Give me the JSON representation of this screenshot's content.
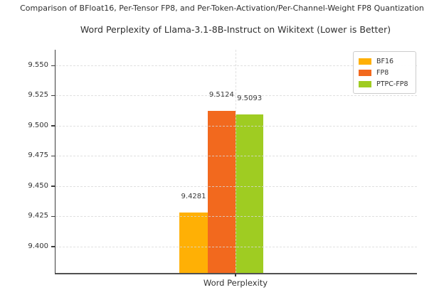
{
  "figure": {
    "suptitle": "Comparison of BFloat16, Per-Tensor FP8, and Per-Token-Activation/Per-Channel-Weight FP8 Quantization"
  },
  "chart_data": {
    "type": "bar",
    "title": "Word Perplexity of Llama-3.1-8B-Instruct on Wikitext (Lower is Better)",
    "categories": [
      "Word Perplexity"
    ],
    "series": [
      {
        "name": "BF16",
        "values": [
          9.4281
        ],
        "color": "#FFB005"
      },
      {
        "name": "FP8",
        "values": [
          9.5124
        ],
        "color": "#F2691E"
      },
      {
        "name": "PTPC-FP8",
        "values": [
          9.5093
        ],
        "color": "#9FCC22"
      }
    ],
    "bar_value_labels": [
      "9.4281",
      "9.5124",
      "9.5093"
    ],
    "ylim": [
      9.378,
      9.563
    ],
    "yticks": [
      9.4,
      9.425,
      9.45,
      9.475,
      9.5,
      9.525,
      9.55
    ],
    "ytick_labels": [
      "9.400",
      "9.425",
      "9.450",
      "9.475",
      "9.500",
      "9.525",
      "9.550"
    ],
    "xlabel": "",
    "ylabel": "",
    "grid": true,
    "grid_style": "dashed",
    "legend_position": "upper right",
    "legend_labels": [
      "BF16",
      "FP8",
      "PTPC-FP8"
    ]
  },
  "colors": {
    "background": "#ffffff",
    "text": "#333333",
    "grid": "#d9d9d9",
    "spine": "#3d3d3d",
    "legend_border": "#cccccc"
  }
}
